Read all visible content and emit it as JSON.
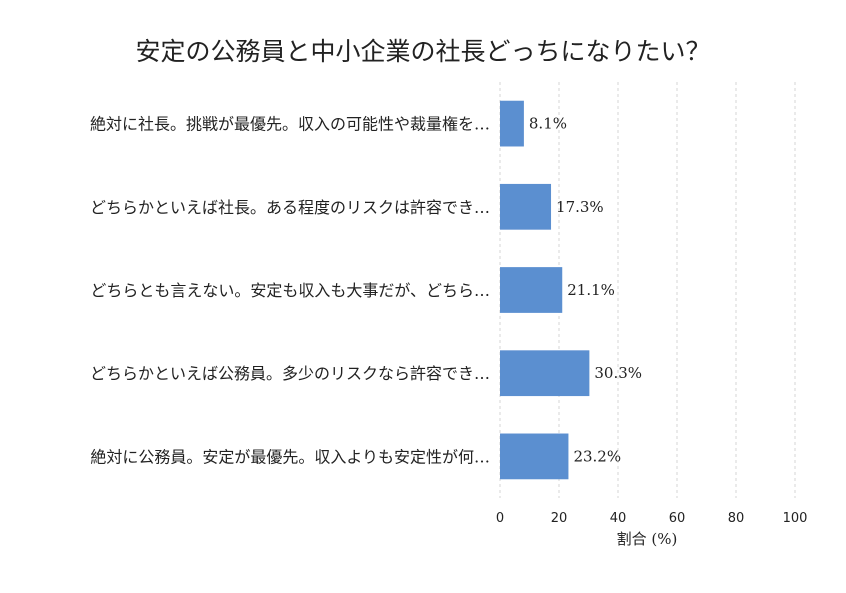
{
  "chart_data": {
    "type": "bar",
    "orientation": "horizontal",
    "title": "安定の公務員と中小企業の社長どっちになりたい？",
    "xlabel": "割合 (%)",
    "ylabel": "",
    "xlim": [
      0,
      100
    ],
    "xticks": [
      "0",
      "20",
      "40",
      "60",
      "80",
      "100"
    ],
    "xtick_values": [
      0,
      20,
      40,
      60,
      80,
      100
    ],
    "grid": "x-dashed",
    "bar_color": "#5b8fd0",
    "categories": [
      "絶対に社長。挑戦が最優先。収入の可能性や裁量権を…",
      "どちらかといえば社長。ある程度のリスクは許容でき…",
      "どちらとも言えない。安定も収入も大事だが、どちら…",
      "どちらかといえば公務員。多少のリスクなら許容でき…",
      "絶対に公務員。安定が最優先。収入よりも安定性が何…"
    ],
    "values": [
      8.1,
      17.3,
      21.1,
      30.3,
      23.2
    ],
    "value_labels": [
      "8.1%",
      "17.3%",
      "21.1%",
      "30.3%",
      "23.2%"
    ]
  }
}
